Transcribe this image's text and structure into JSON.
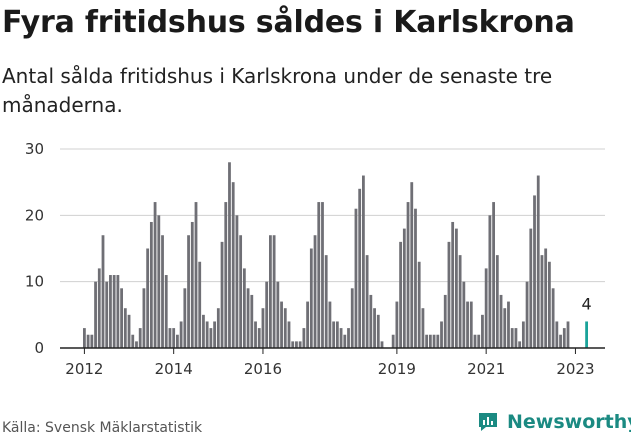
{
  "header": {
    "title": "Fyra fritidshus såldes i Karlskrona",
    "subtitle": "Antal sålda fritidshus i Karlskrona under de senaste tre månaderna."
  },
  "footer": {
    "source": "Källa: Svensk Mäklarstatistik",
    "brand": "Newsworthy"
  },
  "colors": {
    "bar": "#6f6f75",
    "highlight": "#1aa39a",
    "grid": "#d0d0d0",
    "axis": "#222222",
    "brand": "#1b8a82"
  },
  "chart_data": {
    "type": "bar",
    "title": "Fyra fritidshus såldes i Karlskrona",
    "subtitle": "Antal sålda fritidshus i Karlskrona under de senaste tre månaderna.",
    "ylim": [
      0,
      30
    ],
    "yticks": [
      0,
      10,
      20,
      30
    ],
    "xtick_labels": [
      "2012",
      "2014",
      "2016",
      "2019",
      "2021",
      "2023"
    ],
    "grid": true,
    "highlight_label": "4",
    "start": "2012-01",
    "end": "2023-03",
    "values": [
      3,
      2,
      2,
      10,
      12,
      17,
      10,
      11,
      11,
      11,
      9,
      6,
      5,
      2,
      1,
      3,
      9,
      15,
      19,
      22,
      20,
      17,
      11,
      3,
      3,
      2,
      4,
      9,
      17,
      19,
      22,
      13,
      5,
      4,
      3,
      4,
      6,
      16,
      22,
      28,
      25,
      20,
      17,
      12,
      9,
      8,
      4,
      3,
      6,
      10,
      17,
      17,
      10,
      7,
      6,
      4,
      1,
      1,
      1,
      3,
      7,
      15,
      17,
      22,
      22,
      14,
      7,
      4,
      4,
      3,
      2,
      3,
      9,
      21,
      24,
      26,
      14,
      8,
      6,
      5,
      1,
      0,
      0,
      2,
      7,
      16,
      18,
      22,
      25,
      21,
      13,
      6,
      2,
      2,
      2,
      2,
      4,
      8,
      16,
      19,
      18,
      14,
      10,
      7,
      7,
      2,
      2,
      5,
      12,
      20,
      22,
      14,
      8,
      6,
      7,
      3,
      3,
      1,
      4,
      10,
      18,
      23,
      26,
      14,
      15,
      13,
      9,
      4,
      2,
      3,
      4
    ],
    "highlight_value": 4
  }
}
